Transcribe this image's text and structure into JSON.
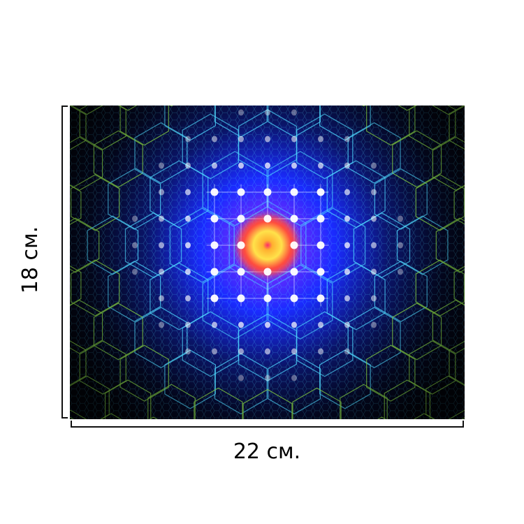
{
  "product": {
    "width_label": "22 см.",
    "height_label": "18 см."
  },
  "artwork": {
    "colors": {
      "background": "#02040c",
      "glow_blue": "#1a2bff",
      "core_yellow": "#ffe24a",
      "core_red": "#ff2a4a",
      "mesh_cyan": "#4fd8ff",
      "mesh_green": "#8fe04a",
      "dot_white": "#ffffff"
    }
  }
}
